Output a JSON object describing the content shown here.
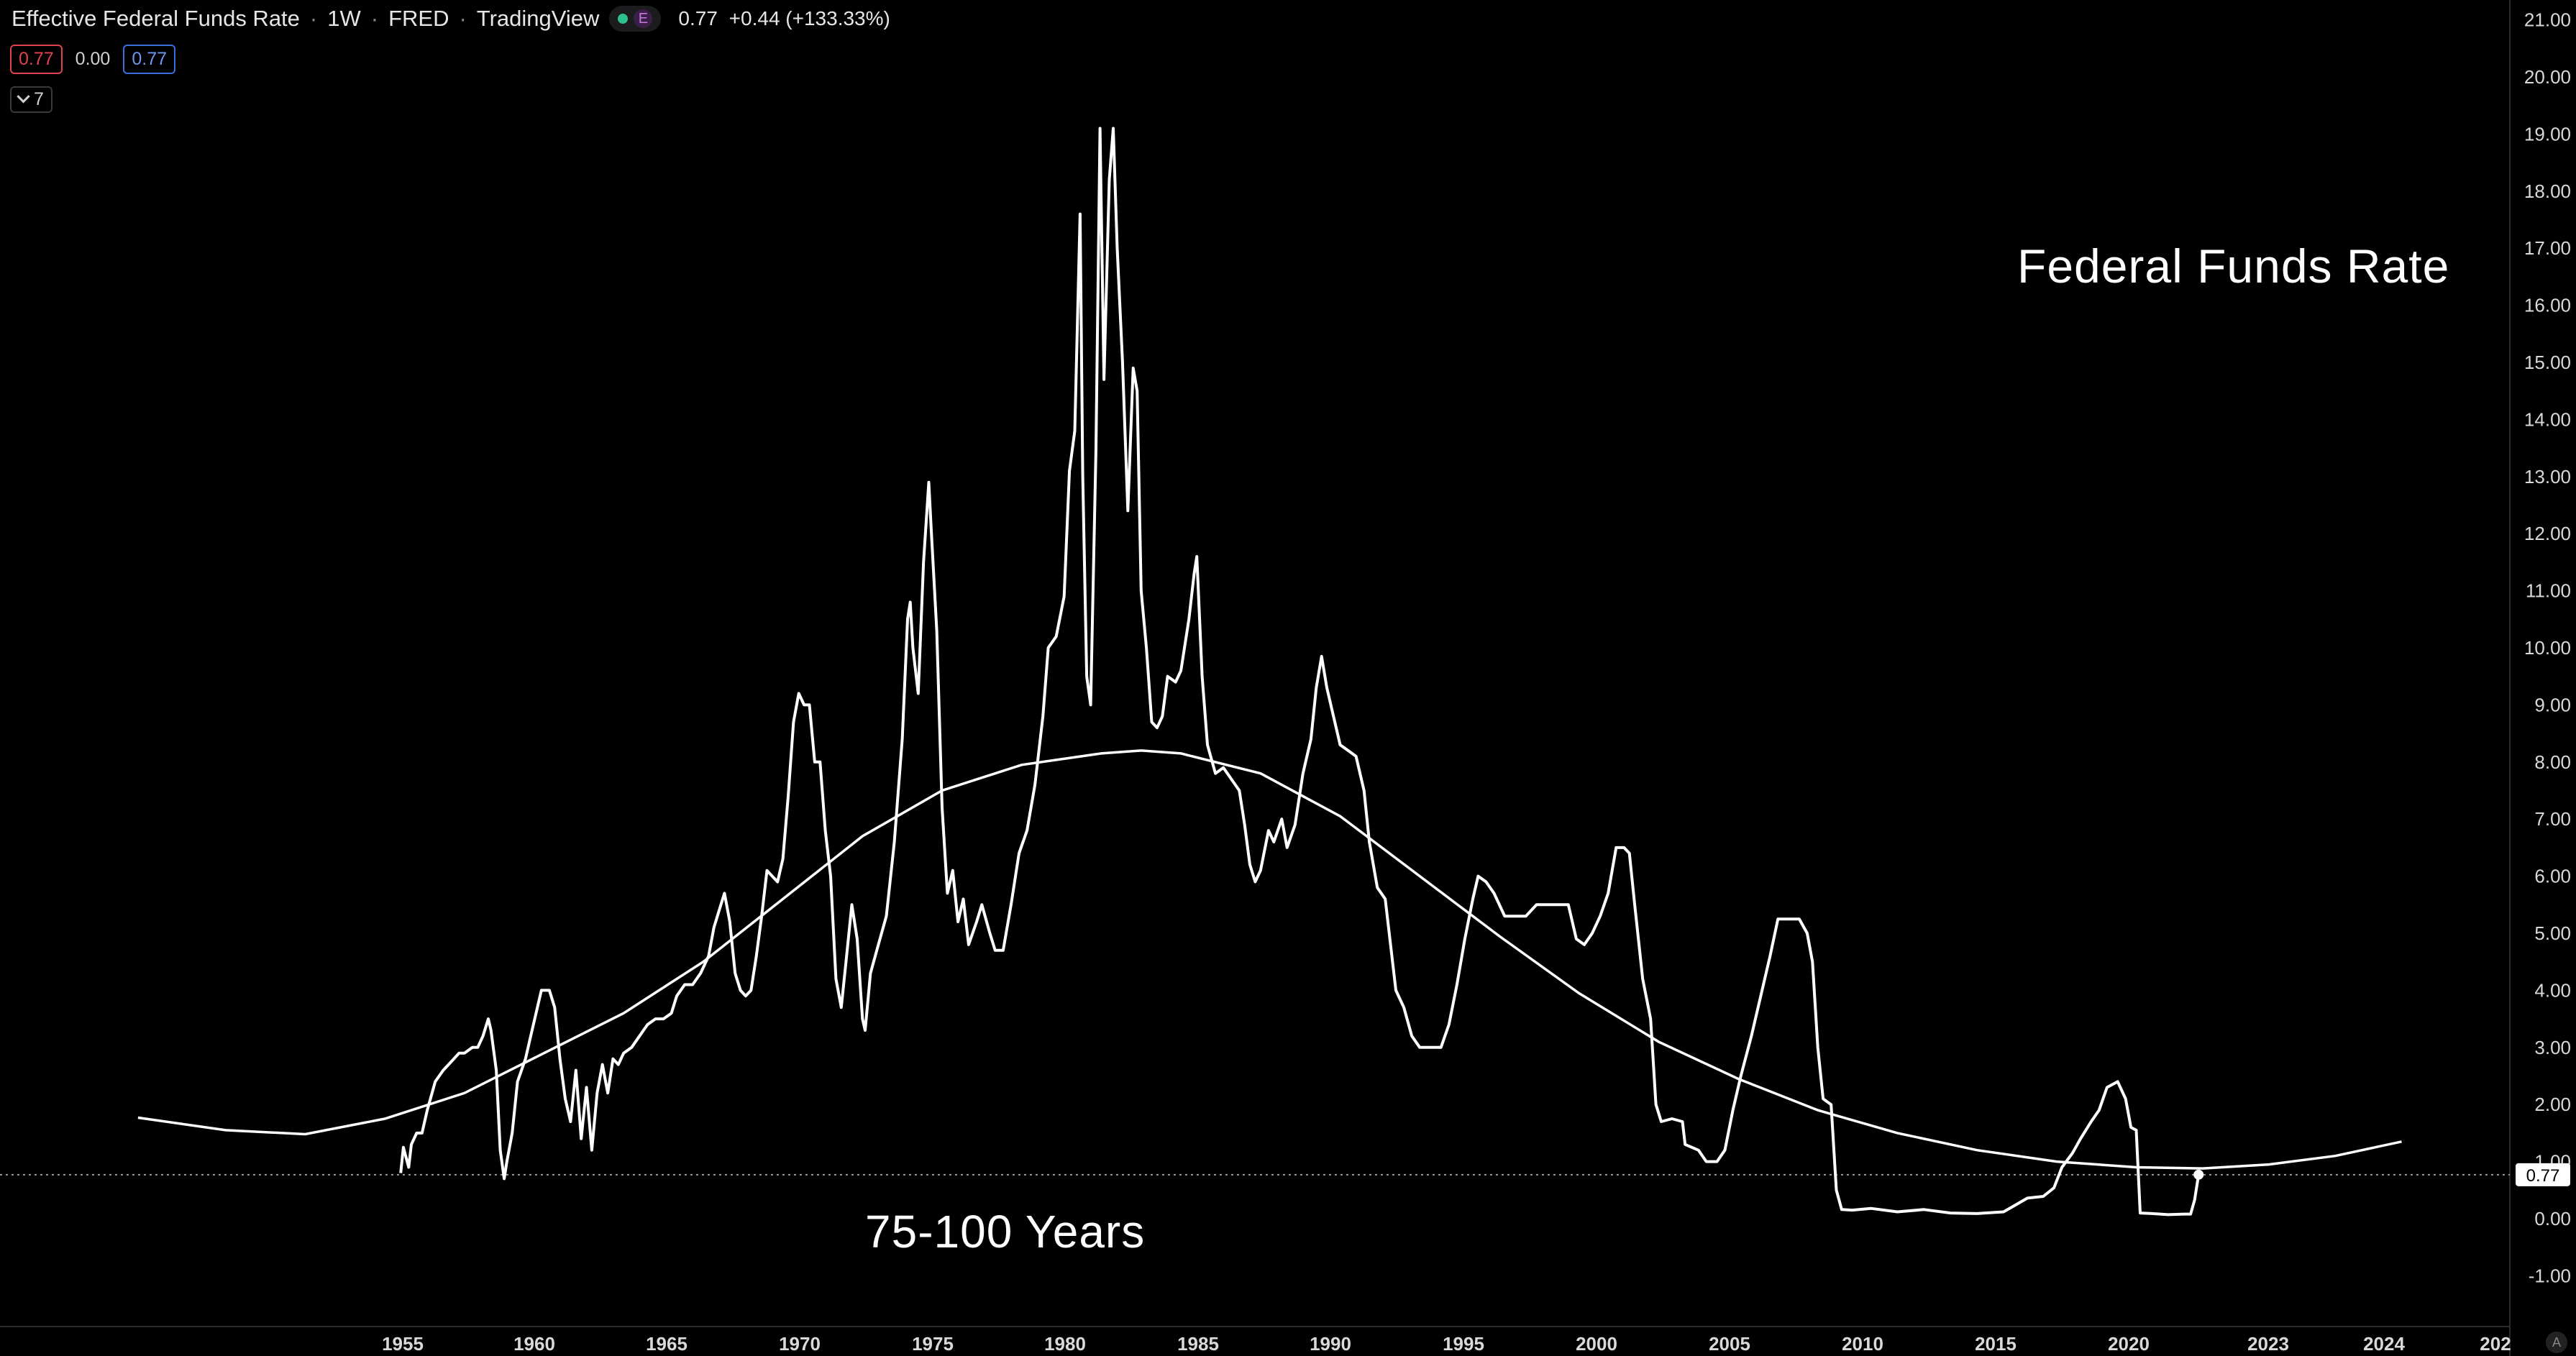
{
  "header": {
    "symbol_title": "Effective Federal Funds Rate",
    "interval": "1W",
    "source": "FRED",
    "provider": "TradingView",
    "pill_badge": "E",
    "quote_last": "0.77",
    "quote_change": "+0.44 (+133.33%)",
    "colors": {
      "dot": "#2fbf8f",
      "badge": "#c97ad8"
    }
  },
  "toolbar": {
    "sell_price": "0.77",
    "spread": "0.00",
    "buy_price": "0.77",
    "indicators_count": "7",
    "icons": [
      "chevron-down-icon",
      "auto-scale-icon"
    ]
  },
  "axis": {
    "corner_label": "A",
    "last_price_label": "0.77"
  },
  "annotations": {
    "title": "Federal Funds Rate",
    "cycle": "75-100 Years"
  },
  "chart_data": {
    "type": "line",
    "title": "",
    "xlabel": "",
    "ylabel": "",
    "ylim": [
      -1.5,
      21.6
    ],
    "y_ticks": [
      "21.00",
      "20.00",
      "19.00",
      "18.00",
      "17.00",
      "16.00",
      "15.00",
      "14.00",
      "13.00",
      "12.00",
      "11.00",
      "10.00",
      "9.00",
      "8.00",
      "7.00",
      "6.00",
      "5.00",
      "4.00",
      "3.00",
      "2.00",
      "1.00",
      "0.00",
      "-1.00"
    ],
    "x_tick_labels": [
      "1955",
      "1960",
      "1965",
      "1970",
      "1975",
      "1980",
      "1985",
      "1990",
      "1995",
      "2000",
      "2005",
      "2010",
      "2015",
      "2020",
      "2023",
      "2024",
      "202"
    ],
    "last_value": 0.77,
    "colors": {
      "line": "#ffffff",
      "curve": "#ffffff",
      "background": "#000000",
      "last_price_box": "#ffffff"
    },
    "series": [
      {
        "points": [
          [
            1954.6,
            0.8
          ],
          [
            1954.7,
            1.25
          ],
          [
            1954.9,
            0.9
          ],
          [
            1955.0,
            1.3
          ],
          [
            1955.2,
            1.5
          ],
          [
            1955.4,
            1.5
          ],
          [
            1955.6,
            1.9
          ],
          [
            1955.9,
            2.4
          ],
          [
            1956.2,
            2.6
          ],
          [
            1956.5,
            2.75
          ],
          [
            1956.8,
            2.9
          ],
          [
            1957.0,
            2.9
          ],
          [
            1957.3,
            3.0
          ],
          [
            1957.5,
            3.0
          ],
          [
            1957.7,
            3.2
          ],
          [
            1957.9,
            3.5
          ],
          [
            1958.0,
            3.3
          ],
          [
            1958.2,
            2.6
          ],
          [
            1958.35,
            1.2
          ],
          [
            1958.5,
            0.7
          ],
          [
            1958.6,
            1.0
          ],
          [
            1958.8,
            1.5
          ],
          [
            1959.0,
            2.4
          ],
          [
            1959.3,
            2.8
          ],
          [
            1959.5,
            3.2
          ],
          [
            1959.7,
            3.6
          ],
          [
            1959.9,
            4.0
          ],
          [
            1960.2,
            4.0
          ],
          [
            1960.4,
            3.7
          ],
          [
            1960.6,
            2.8
          ],
          [
            1960.8,
            2.1
          ],
          [
            1961.0,
            1.7
          ],
          [
            1961.2,
            2.6
          ],
          [
            1961.4,
            1.4
          ],
          [
            1961.6,
            2.3
          ],
          [
            1961.8,
            1.2
          ],
          [
            1962.0,
            2.2
          ],
          [
            1962.2,
            2.7
          ],
          [
            1962.4,
            2.2
          ],
          [
            1962.6,
            2.8
          ],
          [
            1962.8,
            2.7
          ],
          [
            1963.0,
            2.9
          ],
          [
            1963.3,
            3.0
          ],
          [
            1963.6,
            3.2
          ],
          [
            1963.9,
            3.4
          ],
          [
            1964.2,
            3.5
          ],
          [
            1964.5,
            3.5
          ],
          [
            1964.8,
            3.6
          ],
          [
            1965.0,
            3.9
          ],
          [
            1965.3,
            4.1
          ],
          [
            1965.6,
            4.1
          ],
          [
            1965.9,
            4.3
          ],
          [
            1966.2,
            4.6
          ],
          [
            1966.4,
            5.1
          ],
          [
            1966.6,
            5.4
          ],
          [
            1966.8,
            5.7
          ],
          [
            1967.0,
            5.2
          ],
          [
            1967.2,
            4.3
          ],
          [
            1967.4,
            4.0
          ],
          [
            1967.6,
            3.9
          ],
          [
            1967.8,
            4.0
          ],
          [
            1968.0,
            4.6
          ],
          [
            1968.2,
            5.3
          ],
          [
            1968.4,
            6.1
          ],
          [
            1968.6,
            6.0
          ],
          [
            1968.8,
            5.9
          ],
          [
            1969.0,
            6.3
          ],
          [
            1969.2,
            7.4
          ],
          [
            1969.4,
            8.7
          ],
          [
            1969.6,
            9.2
          ],
          [
            1969.8,
            9.0
          ],
          [
            1970.0,
            9.0
          ],
          [
            1970.2,
            8.0
          ],
          [
            1970.4,
            8.0
          ],
          [
            1970.6,
            6.8
          ],
          [
            1970.8,
            6.0
          ],
          [
            1971.0,
            4.2
          ],
          [
            1971.2,
            3.7
          ],
          [
            1971.4,
            4.6
          ],
          [
            1971.6,
            5.5
          ],
          [
            1971.8,
            4.9
          ],
          [
            1972.0,
            3.5
          ],
          [
            1972.1,
            3.3
          ],
          [
            1972.3,
            4.3
          ],
          [
            1972.6,
            4.8
          ],
          [
            1972.9,
            5.3
          ],
          [
            1973.2,
            6.6
          ],
          [
            1973.5,
            8.4
          ],
          [
            1973.7,
            10.5
          ],
          [
            1973.8,
            10.8
          ],
          [
            1973.9,
            10.0
          ],
          [
            1974.1,
            9.2
          ],
          [
            1974.3,
            11.5
          ],
          [
            1974.5,
            12.9
          ],
          [
            1974.6,
            12.0
          ],
          [
            1974.8,
            10.3
          ],
          [
            1975.0,
            7.2
          ],
          [
            1975.2,
            5.7
          ],
          [
            1975.4,
            6.1
          ],
          [
            1975.6,
            5.2
          ],
          [
            1975.8,
            5.6
          ],
          [
            1976.0,
            4.8
          ],
          [
            1976.3,
            5.2
          ],
          [
            1976.5,
            5.5
          ],
          [
            1976.8,
            5.0
          ],
          [
            1977.0,
            4.7
          ],
          [
            1977.3,
            4.7
          ],
          [
            1977.6,
            5.5
          ],
          [
            1977.9,
            6.4
          ],
          [
            1978.2,
            6.8
          ],
          [
            1978.5,
            7.6
          ],
          [
            1978.8,
            8.8
          ],
          [
            1979.0,
            10.0
          ],
          [
            1979.3,
            10.2
          ],
          [
            1979.6,
            10.9
          ],
          [
            1979.8,
            13.1
          ],
          [
            1980.0,
            13.8
          ],
          [
            1980.2,
            17.6
          ],
          [
            1980.3,
            13.0
          ],
          [
            1980.45,
            9.5
          ],
          [
            1980.6,
            9.0
          ],
          [
            1980.8,
            13.5
          ],
          [
            1980.95,
            19.1
          ],
          [
            1981.1,
            14.7
          ],
          [
            1981.3,
            18.2
          ],
          [
            1981.45,
            19.1
          ],
          [
            1981.6,
            17.0
          ],
          [
            1981.8,
            15.0
          ],
          [
            1982.0,
            12.4
          ],
          [
            1982.2,
            14.9
          ],
          [
            1982.35,
            14.5
          ],
          [
            1982.5,
            11.0
          ],
          [
            1982.7,
            10.0
          ],
          [
            1982.9,
            8.7
          ],
          [
            1983.1,
            8.6
          ],
          [
            1983.3,
            8.8
          ],
          [
            1983.5,
            9.5
          ],
          [
            1983.8,
            9.4
          ],
          [
            1984.0,
            9.6
          ],
          [
            1984.3,
            10.5
          ],
          [
            1984.5,
            11.3
          ],
          [
            1984.6,
            11.6
          ],
          [
            1984.8,
            9.5
          ],
          [
            1985.0,
            8.3
          ],
          [
            1985.3,
            7.8
          ],
          [
            1985.6,
            7.9
          ],
          [
            1985.9,
            7.7
          ],
          [
            1986.2,
            7.5
          ],
          [
            1986.4,
            6.9
          ],
          [
            1986.6,
            6.2
          ],
          [
            1986.8,
            5.9
          ],
          [
            1987.0,
            6.1
          ],
          [
            1987.3,
            6.8
          ],
          [
            1987.5,
            6.6
          ],
          [
            1987.8,
            7.0
          ],
          [
            1988.0,
            6.5
          ],
          [
            1988.3,
            6.9
          ],
          [
            1988.6,
            7.8
          ],
          [
            1988.9,
            8.4
          ],
          [
            1989.1,
            9.3
          ],
          [
            1989.3,
            9.85
          ],
          [
            1989.5,
            9.3
          ],
          [
            1989.8,
            8.7
          ],
          [
            1990.0,
            8.3
          ],
          [
            1990.3,
            8.2
          ],
          [
            1990.6,
            8.1
          ],
          [
            1990.9,
            7.5
          ],
          [
            1991.1,
            6.6
          ],
          [
            1991.4,
            5.8
          ],
          [
            1991.7,
            5.6
          ],
          [
            1991.9,
            4.8
          ],
          [
            1992.1,
            4.0
          ],
          [
            1992.4,
            3.7
          ],
          [
            1992.7,
            3.2
          ],
          [
            1993.0,
            3.0
          ],
          [
            1993.4,
            3.0
          ],
          [
            1993.8,
            3.0
          ],
          [
            1994.1,
            3.4
          ],
          [
            1994.4,
            4.1
          ],
          [
            1994.7,
            4.9
          ],
          [
            1995.0,
            5.6
          ],
          [
            1995.2,
            6.0
          ],
          [
            1995.5,
            5.9
          ],
          [
            1995.8,
            5.7
          ],
          [
            1996.2,
            5.3
          ],
          [
            1996.6,
            5.3
          ],
          [
            1997.0,
            5.3
          ],
          [
            1997.4,
            5.5
          ],
          [
            1997.8,
            5.5
          ],
          [
            1998.2,
            5.5
          ],
          [
            1998.6,
            5.5
          ],
          [
            1998.9,
            4.9
          ],
          [
            1999.2,
            4.8
          ],
          [
            1999.5,
            5.0
          ],
          [
            1999.8,
            5.3
          ],
          [
            2000.1,
            5.7
          ],
          [
            2000.4,
            6.5
          ],
          [
            2000.7,
            6.5
          ],
          [
            2000.9,
            6.4
          ],
          [
            2001.1,
            5.5
          ],
          [
            2001.4,
            4.2
          ],
          [
            2001.7,
            3.5
          ],
          [
            2001.9,
            2.0
          ],
          [
            2002.1,
            1.7
          ],
          [
            2002.5,
            1.75
          ],
          [
            2002.9,
            1.7
          ],
          [
            2003.0,
            1.3
          ],
          [
            2003.5,
            1.2
          ],
          [
            2003.8,
            1.0
          ],
          [
            2004.2,
            1.0
          ],
          [
            2004.5,
            1.2
          ],
          [
            2004.8,
            1.9
          ],
          [
            2005.1,
            2.5
          ],
          [
            2005.5,
            3.2
          ],
          [
            2005.9,
            4.0
          ],
          [
            2006.2,
            4.6
          ],
          [
            2006.5,
            5.25
          ],
          [
            2006.9,
            5.25
          ],
          [
            2007.3,
            5.25
          ],
          [
            2007.6,
            5.0
          ],
          [
            2007.8,
            4.5
          ],
          [
            2008.0,
            3.0
          ],
          [
            2008.2,
            2.1
          ],
          [
            2008.5,
            2.0
          ],
          [
            2008.7,
            0.5
          ],
          [
            2008.9,
            0.16
          ],
          [
            2009.3,
            0.15
          ],
          [
            2010.0,
            0.18
          ],
          [
            2011.0,
            0.12
          ],
          [
            2012.0,
            0.16
          ],
          [
            2013.0,
            0.1
          ],
          [
            2014.0,
            0.09
          ],
          [
            2015.0,
            0.12
          ],
          [
            2015.9,
            0.36
          ],
          [
            2016.5,
            0.39
          ],
          [
            2016.9,
            0.54
          ],
          [
            2017.2,
            0.9
          ],
          [
            2017.6,
            1.15
          ],
          [
            2017.9,
            1.4
          ],
          [
            2018.3,
            1.7
          ],
          [
            2018.6,
            1.9
          ],
          [
            2018.9,
            2.3
          ],
          [
            2019.3,
            2.4
          ],
          [
            2019.6,
            2.1
          ],
          [
            2019.8,
            1.6
          ],
          [
            2020.0,
            1.55
          ],
          [
            2020.15,
            0.1
          ],
          [
            2020.6,
            0.09
          ],
          [
            2021.2,
            0.07
          ],
          [
            2021.8,
            0.08
          ],
          [
            2022.05,
            0.08
          ],
          [
            2022.2,
            0.33
          ],
          [
            2022.35,
            0.77
          ]
        ]
      },
      {
        "points": [
          [
            1944.7,
            1.77
          ],
          [
            1948.0,
            1.55
          ],
          [
            1951.0,
            1.48
          ],
          [
            1954.0,
            1.75
          ],
          [
            1957.0,
            2.2
          ],
          [
            1960.0,
            2.9
          ],
          [
            1963.0,
            3.6
          ],
          [
            1966.0,
            4.5
          ],
          [
            1969.0,
            5.6
          ],
          [
            1972.0,
            6.7
          ],
          [
            1975.0,
            7.5
          ],
          [
            1978.0,
            7.95
          ],
          [
            1981.0,
            8.15
          ],
          [
            1982.5,
            8.2
          ],
          [
            1984.0,
            8.15
          ],
          [
            1987.0,
            7.8
          ],
          [
            1990.0,
            7.05
          ],
          [
            1993.0,
            6.0
          ],
          [
            1996.0,
            4.95
          ],
          [
            1999.0,
            3.95
          ],
          [
            2002.0,
            3.1
          ],
          [
            2005.0,
            2.45
          ],
          [
            2008.0,
            1.9
          ],
          [
            2011.0,
            1.5
          ],
          [
            2014.0,
            1.2
          ],
          [
            2017.0,
            1.0
          ],
          [
            2020.0,
            0.9
          ],
          [
            2022.5,
            0.88
          ],
          [
            2025.0,
            0.95
          ],
          [
            2027.5,
            1.1
          ],
          [
            2030.0,
            1.35
          ]
        ]
      }
    ]
  }
}
